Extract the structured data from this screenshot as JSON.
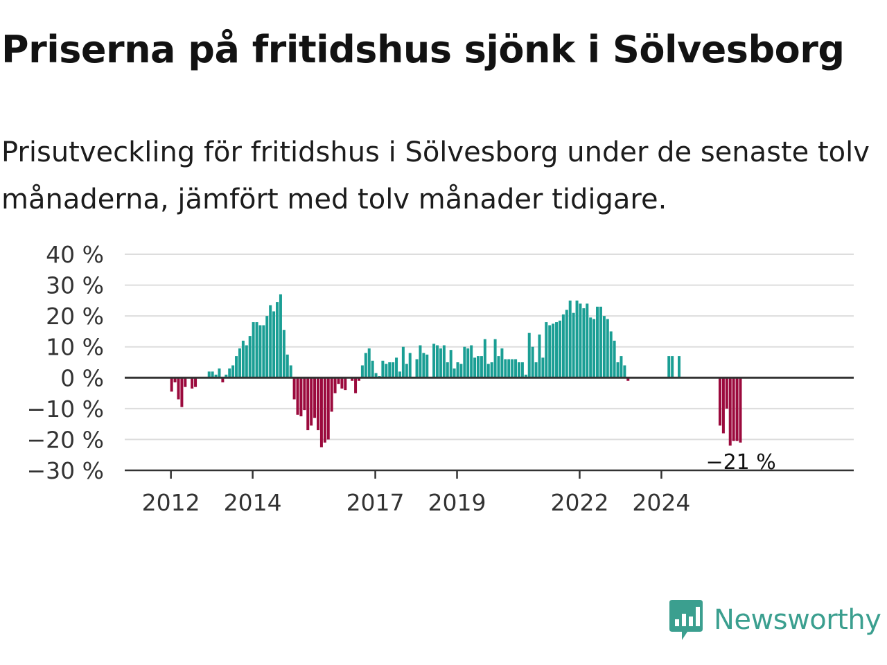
{
  "title": "Priserna på fritidshus sjönk i Sölvesborg",
  "subtitle": "Prisutveckling för fritidshus i Sölvesborg under de senaste tolv månaderna, jämfört med tolv månader tidigare.",
  "brand": {
    "name": "Newsworthy"
  },
  "colors": {
    "positive": "#1a9e94",
    "negative": "#9b0a3d",
    "grid": "#dddddd",
    "zero_line": "#333333",
    "text": "#333333"
  },
  "chart_data": {
    "type": "bar",
    "y_unit": "%",
    "ylim": [
      -30,
      40
    ],
    "y_ticks": [
      40,
      30,
      20,
      10,
      0,
      -10,
      -20,
      -30
    ],
    "y_tick_labels": [
      "40 %",
      "30 %",
      "20 %",
      "10 %",
      "0 %",
      "−10 %",
      "−20 %",
      "−30 %"
    ],
    "x_ticks": [
      {
        "label": "2012",
        "year": 2012
      },
      {
        "label": "2014",
        "year": 2014
      },
      {
        "label": "2017",
        "year": 2017
      },
      {
        "label": "2019",
        "year": 2019
      },
      {
        "label": "2022",
        "year": 2022
      },
      {
        "label": "2024",
        "year": 2024
      }
    ],
    "grid": "horizontal",
    "start": "2011-09",
    "interval": "month",
    "values": [
      null,
      null,
      null,
      null,
      -4.5,
      -1.5,
      -7,
      -9.5,
      -3,
      null,
      -3.5,
      -3,
      null,
      null,
      null,
      2,
      2,
      1,
      3,
      -1.5,
      1,
      3,
      4,
      7,
      9.5,
      12,
      10.5,
      13.5,
      18,
      18,
      17,
      17,
      20,
      23.5,
      21.5,
      24.5,
      27,
      15.5,
      7.5,
      4,
      -7,
      -12,
      -12.5,
      -10.5,
      -17,
      -15.5,
      -13,
      -17,
      -22.5,
      -21,
      -20,
      -11,
      -5,
      -2,
      -3.5,
      -4,
      null,
      -1,
      -5,
      -1,
      4,
      8,
      9.5,
      5.5,
      1.5,
      0.5,
      5.5,
      4.5,
      5,
      5,
      6.5,
      2,
      10,
      4.5,
      8,
      null,
      6,
      10.5,
      8,
      7.5,
      null,
      11,
      10.5,
      9.5,
      10.5,
      5,
      9,
      3,
      5,
      4.5,
      10,
      9.5,
      10.5,
      6.5,
      7,
      7,
      12.5,
      4.5,
      5,
      12.5,
      7,
      9.5,
      6,
      6,
      6,
      6,
      5,
      5,
      1,
      14.5,
      10,
      5,
      14,
      6.5,
      18,
      17,
      17.5,
      18,
      18.5,
      20.5,
      22,
      25,
      21,
      25,
      24,
      22.5,
      24,
      19.5,
      19,
      23,
      23,
      20,
      19,
      15,
      12,
      5,
      7,
      4,
      -1,
      null,
      null,
      null,
      null,
      null,
      null,
      null,
      null,
      null,
      null,
      null,
      7,
      7,
      null,
      7,
      null,
      null,
      null,
      null,
      null,
      null,
      null,
      null,
      null,
      null,
      null,
      -15.5,
      -18,
      -10,
      -22,
      -20.5,
      -20.5,
      -21
    ],
    "annotation": {
      "label": "−21 %",
      "value": -21
    }
  }
}
